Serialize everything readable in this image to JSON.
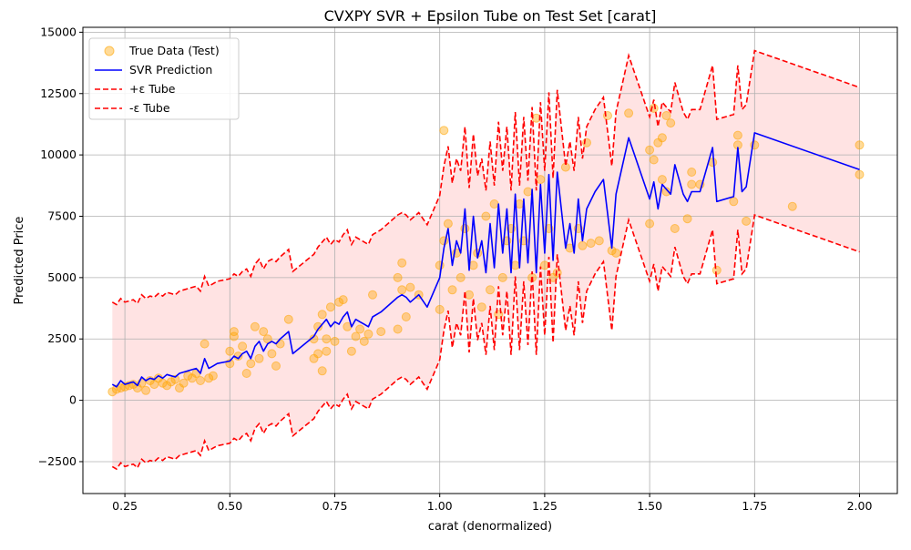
{
  "chart_data": {
    "type": "scatter",
    "title": "CVXPY SVR + Epsilon Tube on Test Set [carat]",
    "xlabel": "carat (denormalized)",
    "ylabel": "Predicted Price",
    "xlim": [
      0.15,
      2.09
    ],
    "ylim": [
      -3800,
      15200
    ],
    "x_ticks": [
      0.25,
      0.5,
      0.75,
      1.0,
      1.25,
      1.5,
      1.75,
      2.0
    ],
    "x_tick_labels": [
      "0.25",
      "0.50",
      "0.75",
      "1.00",
      "1.25",
      "1.50",
      "1.75",
      "2.00"
    ],
    "y_ticks": [
      -2500,
      0,
      2500,
      5000,
      7500,
      10000,
      12500,
      15000
    ],
    "y_tick_labels": [
      "−2500",
      "0",
      "2500",
      "5000",
      "7500",
      "10000",
      "12500",
      "15000"
    ],
    "grid": true,
    "legend_position": "top-left",
    "epsilon": 3350,
    "colors": {
      "true_data": "#ffa500",
      "prediction": "#0000ff",
      "tube": "#ff0000",
      "tube_fill": "#ffe0e0"
    },
    "series": [
      {
        "name": "True Data (Test)",
        "kind": "scatter",
        "x": [
          0.22,
          0.23,
          0.24,
          0.25,
          0.26,
          0.27,
          0.28,
          0.29,
          0.3,
          0.31,
          0.32,
          0.33,
          0.34,
          0.35,
          0.36,
          0.37,
          0.38,
          0.39,
          0.4,
          0.41,
          0.42,
          0.43,
          0.44,
          0.45,
          0.46,
          0.5,
          0.5,
          0.51,
          0.51,
          0.52,
          0.53,
          0.54,
          0.55,
          0.56,
          0.57,
          0.58,
          0.59,
          0.6,
          0.61,
          0.62,
          0.64,
          0.7,
          0.7,
          0.71,
          0.71,
          0.72,
          0.72,
          0.73,
          0.73,
          0.74,
          0.75,
          0.76,
          0.77,
          0.78,
          0.79,
          0.8,
          0.81,
          0.82,
          0.83,
          0.84,
          0.86,
          0.9,
          0.9,
          0.91,
          0.91,
          0.92,
          0.93,
          0.95,
          1.0,
          1.0,
          1.01,
          1.01,
          1.02,
          1.03,
          1.04,
          1.05,
          1.06,
          1.07,
          1.08,
          1.09,
          1.1,
          1.11,
          1.12,
          1.13,
          1.14,
          1.15,
          1.16,
          1.17,
          1.18,
          1.19,
          1.2,
          1.21,
          1.22,
          1.23,
          1.24,
          1.25,
          1.26,
          1.27,
          1.28,
          1.3,
          1.31,
          1.33,
          1.34,
          1.35,
          1.36,
          1.38,
          1.4,
          1.41,
          1.42,
          1.45,
          1.5,
          1.5,
          1.51,
          1.51,
          1.52,
          1.53,
          1.53,
          1.54,
          1.54,
          1.55,
          1.56,
          1.59,
          1.6,
          1.6,
          1.62,
          1.65,
          1.66,
          1.7,
          1.71,
          1.71,
          1.73,
          1.75,
          1.84,
          2.0,
          2.0
        ],
        "y": [
          350,
          450,
          500,
          550,
          600,
          650,
          500,
          700,
          400,
          800,
          650,
          900,
          700,
          600,
          750,
          850,
          500,
          700,
          1000,
          900,
          1100,
          800,
          2300,
          900,
          1000,
          1500,
          2000,
          2600,
          2800,
          1800,
          2200,
          1100,
          1500,
          3000,
          1700,
          2800,
          2500,
          1900,
          1400,
          2300,
          3300,
          1700,
          2500,
          3000,
          1900,
          1200,
          3500,
          2000,
          2500,
          3800,
          2400,
          4000,
          4100,
          3000,
          2000,
          2600,
          2900,
          2400,
          2700,
          4300,
          2800,
          2900,
          5000,
          5600,
          4500,
          3400,
          4600,
          4300,
          3700,
          5500,
          11000,
          6500,
          7200,
          4500,
          6000,
          5000,
          7000,
          4300,
          5500,
          6000,
          3800,
          7500,
          4500,
          8000,
          3500,
          5000,
          6500,
          7000,
          5500,
          8000,
          6500,
          8500,
          5000,
          11500,
          9000,
          5500,
          7000,
          5000,
          5200,
          9500,
          6200,
          7000,
          6300,
          10500,
          6400,
          6500,
          11600,
          6100,
          6000,
          11700,
          7200,
          10200,
          9800,
          11900,
          10500,
          10700,
          9000,
          11600,
          8500,
          11300,
          7000,
          7400,
          9300,
          8800,
          8800,
          9700,
          5300,
          8100,
          10800,
          10400,
          7300,
          10400,
          7900,
          10400,
          9200
        ]
      },
      {
        "name": "SVR Prediction",
        "kind": "line",
        "x": [
          0.22,
          0.23,
          0.24,
          0.25,
          0.26,
          0.27,
          0.28,
          0.29,
          0.3,
          0.31,
          0.32,
          0.33,
          0.34,
          0.35,
          0.36,
          0.37,
          0.38,
          0.39,
          0.4,
          0.41,
          0.42,
          0.43,
          0.44,
          0.45,
          0.46,
          0.47,
          0.5,
          0.51,
          0.52,
          0.53,
          0.54,
          0.55,
          0.56,
          0.57,
          0.58,
          0.59,
          0.6,
          0.61,
          0.62,
          0.64,
          0.65,
          0.7,
          0.71,
          0.72,
          0.73,
          0.74,
          0.75,
          0.76,
          0.77,
          0.78,
          0.79,
          0.8,
          0.81,
          0.82,
          0.83,
          0.84,
          0.86,
          0.9,
          0.91,
          0.92,
          0.93,
          0.95,
          0.97,
          1.0,
          1.01,
          1.02,
          1.03,
          1.04,
          1.05,
          1.06,
          1.07,
          1.08,
          1.09,
          1.1,
          1.11,
          1.12,
          1.13,
          1.14,
          1.15,
          1.16,
          1.17,
          1.18,
          1.19,
          1.2,
          1.21,
          1.22,
          1.23,
          1.24,
          1.25,
          1.26,
          1.27,
          1.28,
          1.3,
          1.31,
          1.32,
          1.33,
          1.34,
          1.35,
          1.37,
          1.39,
          1.41,
          1.42,
          1.45,
          1.5,
          1.51,
          1.52,
          1.53,
          1.54,
          1.55,
          1.56,
          1.58,
          1.59,
          1.6,
          1.62,
          1.65,
          1.66,
          1.7,
          1.71,
          1.72,
          1.73,
          1.75,
          2.0
        ],
        "y": [
          650,
          550,
          800,
          650,
          700,
          750,
          600,
          950,
          800,
          900,
          850,
          1000,
          900,
          1050,
          1000,
          950,
          1100,
          1150,
          1200,
          1250,
          1300,
          1100,
          1700,
          1300,
          1400,
          1500,
          1600,
          1800,
          1700,
          1900,
          2000,
          1700,
          2200,
          2400,
          2000,
          2300,
          2400,
          2300,
          2500,
          2800,
          1900,
          2600,
          2900,
          3100,
          3300,
          3000,
          3200,
          3100,
          3400,
          3600,
          3000,
          3300,
          3200,
          3100,
          3000,
          3400,
          3600,
          4200,
          4300,
          4200,
          4000,
          4300,
          3800,
          5000,
          6200,
          7000,
          5500,
          6500,
          6000,
          7800,
          5300,
          7500,
          5800,
          6500,
          5200,
          7200,
          5400,
          8000,
          6000,
          7800,
          5200,
          8400,
          5400,
          8200,
          5600,
          8600,
          5200,
          8800,
          6000,
          9200,
          5700,
          9300,
          6200,
          7200,
          6000,
          8200,
          6500,
          7800,
          8500,
          9000,
          6200,
          8400,
          10700,
          8200,
          8900,
          7800,
          8800,
          8600,
          8400,
          9600,
          8400,
          8100,
          8500,
          8500,
          10300,
          8100,
          8300,
          10300,
          8500,
          8700,
          10900,
          9400
        ]
      },
      {
        "name": "+ε Tube",
        "kind": "dashed-line",
        "offset": 3350
      },
      {
        "name": "-ε Tube",
        "kind": "dashed-line",
        "offset": -3350
      }
    ]
  }
}
